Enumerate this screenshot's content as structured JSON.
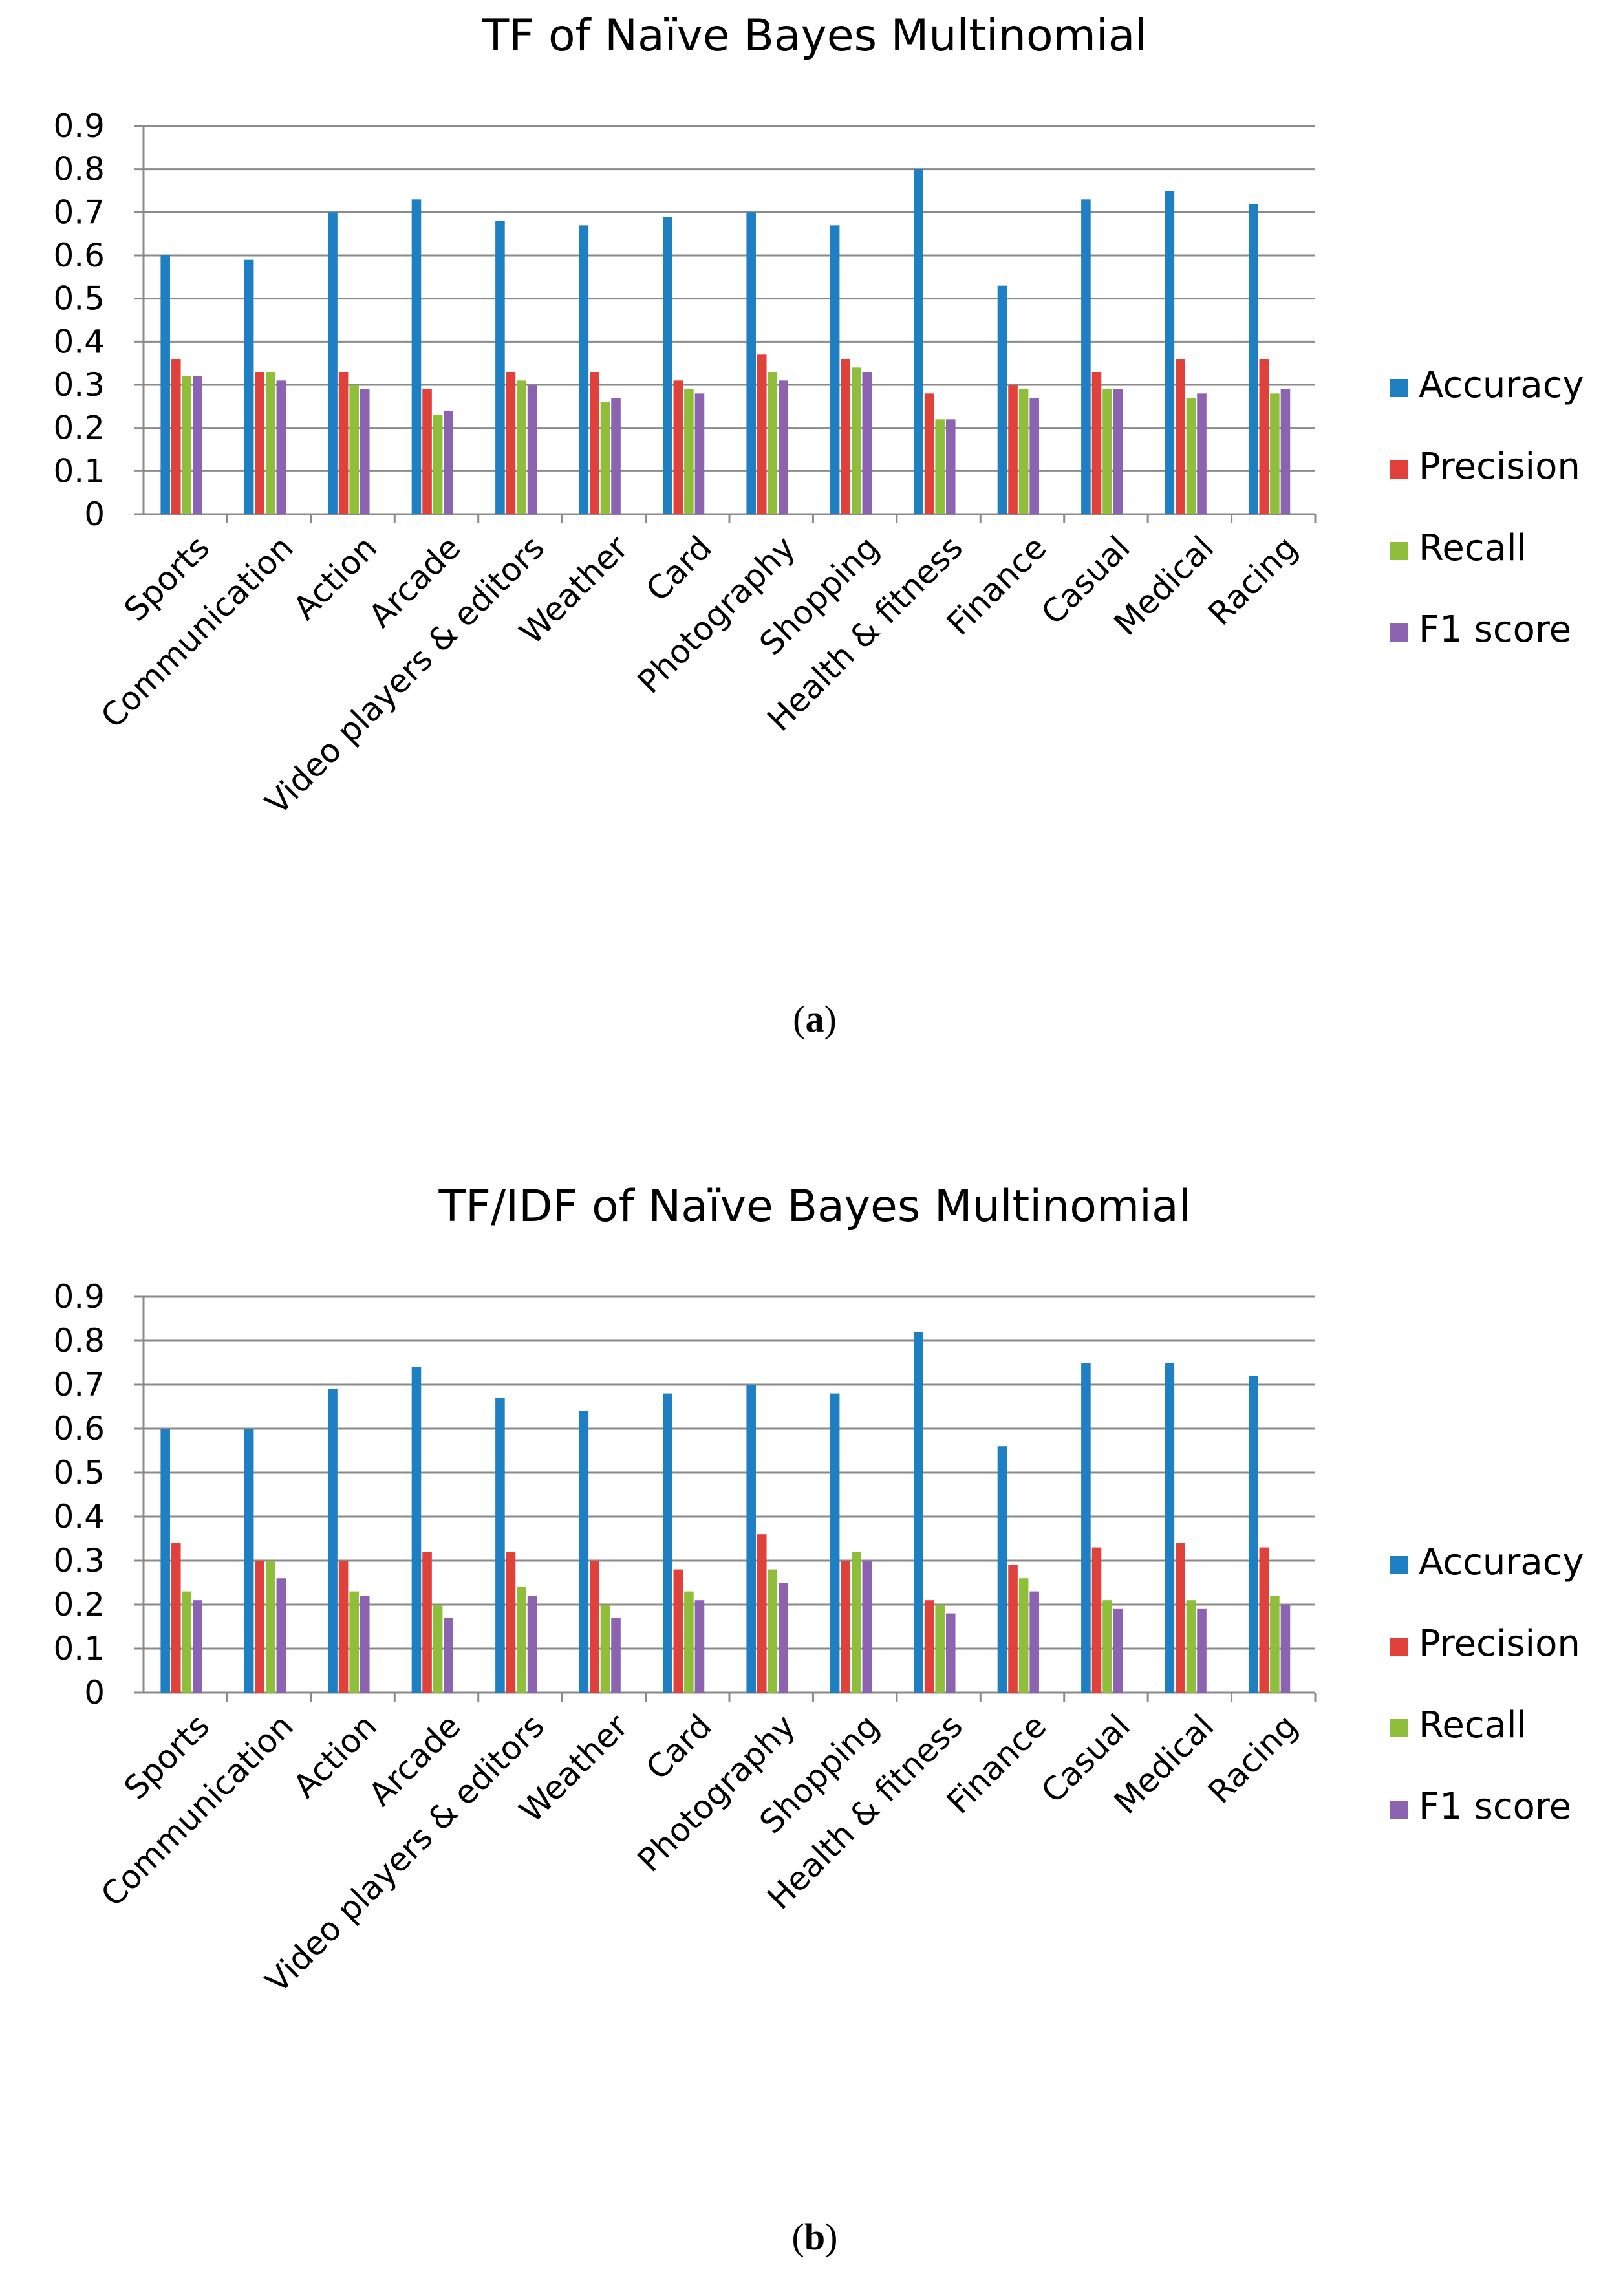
{
  "chart_data": [
    {
      "type": "bar",
      "title": "TF of Naïve Bayes Multinomial",
      "caption_letter": "a",
      "xlabel": "",
      "ylabel": "",
      "ylim": [
        0,
        0.9
      ],
      "yticks": [
        "0",
        "0.1",
        "0.2",
        "0.3",
        "0.4",
        "0.5",
        "0.6",
        "0.7",
        "0.8",
        "0.9"
      ],
      "grid": true,
      "legend_position": "right",
      "categories": [
        "Sports",
        "Communication",
        "Action",
        "Arcade",
        "Video players & editors",
        "Weather",
        "Card",
        "Photography",
        "Shopping",
        "Health & fitness",
        "Finance",
        "Casual",
        "Medical",
        "Racing"
      ],
      "series": [
        {
          "name": "Accuracy",
          "color": "#1f7fc3",
          "values": [
            0.6,
            0.59,
            0.7,
            0.73,
            0.68,
            0.67,
            0.69,
            0.7,
            0.67,
            0.8,
            0.53,
            0.73,
            0.75,
            0.72
          ]
        },
        {
          "name": "Precision",
          "color": "#e0413b",
          "values": [
            0.36,
            0.33,
            0.33,
            0.29,
            0.33,
            0.33,
            0.31,
            0.37,
            0.36,
            0.28,
            0.3,
            0.33,
            0.36,
            0.36
          ]
        },
        {
          "name": "Recall",
          "color": "#8fbf3a",
          "values": [
            0.32,
            0.33,
            0.3,
            0.23,
            0.31,
            0.26,
            0.29,
            0.33,
            0.34,
            0.22,
            0.29,
            0.29,
            0.27,
            0.28
          ]
        },
        {
          "name": "F1 score",
          "color": "#8b63b0",
          "values": [
            0.32,
            0.31,
            0.29,
            0.24,
            0.3,
            0.27,
            0.28,
            0.31,
            0.33,
            0.22,
            0.27,
            0.29,
            0.28,
            0.29
          ]
        }
      ]
    },
    {
      "type": "bar",
      "title": "TF/IDF of Naïve Bayes Multinomial",
      "caption_letter": "b",
      "xlabel": "",
      "ylabel": "",
      "ylim": [
        0,
        0.9
      ],
      "yticks": [
        "0",
        "0.1",
        "0.2",
        "0.3",
        "0.4",
        "0.5",
        "0.6",
        "0.7",
        "0.8",
        "0.9"
      ],
      "grid": true,
      "legend_position": "right",
      "categories": [
        "Sports",
        "Communication",
        "Action",
        "Arcade",
        "Video players & editors",
        "Weather",
        "Card",
        "Photography",
        "Shopping",
        "Health & fitness",
        "Finance",
        "Casual",
        "Medical",
        "Racing"
      ],
      "series": [
        {
          "name": "Accuracy",
          "color": "#1f7fc3",
          "values": [
            0.6,
            0.6,
            0.69,
            0.74,
            0.67,
            0.64,
            0.68,
            0.7,
            0.68,
            0.82,
            0.56,
            0.75,
            0.75,
            0.72
          ]
        },
        {
          "name": "Precision",
          "color": "#e0413b",
          "values": [
            0.34,
            0.3,
            0.3,
            0.32,
            0.32,
            0.3,
            0.28,
            0.36,
            0.3,
            0.21,
            0.29,
            0.33,
            0.34,
            0.33
          ]
        },
        {
          "name": "Recall",
          "color": "#8fbf3a",
          "values": [
            0.23,
            0.3,
            0.23,
            0.2,
            0.24,
            0.2,
            0.23,
            0.28,
            0.32,
            0.2,
            0.26,
            0.21,
            0.21,
            0.22
          ]
        },
        {
          "name": "F1 score",
          "color": "#8b63b0",
          "values": [
            0.21,
            0.26,
            0.22,
            0.17,
            0.22,
            0.17,
            0.21,
            0.25,
            0.3,
            0.18,
            0.23,
            0.19,
            0.19,
            0.2
          ]
        }
      ]
    }
  ]
}
